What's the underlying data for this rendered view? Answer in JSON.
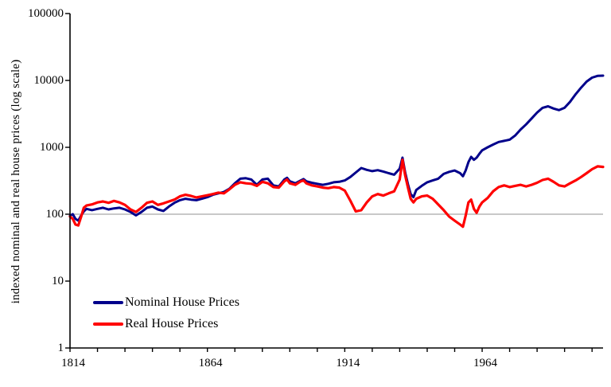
{
  "figure": {
    "y_axis_title": "indexed nominal and real house prices (log scale)",
    "legend": [
      {
        "label": "Nominal House Prices",
        "color": "#00008B"
      },
      {
        "label": "Real House Prices",
        "color": "#FF0000"
      }
    ]
  },
  "chart_data": {
    "type": "line",
    "title": "",
    "xlabel": "",
    "ylabel": "indexed nominal and real house prices (log scale)",
    "y_scale": "log",
    "ylim": [
      1,
      100000
    ],
    "xlim": [
      1814,
      2008
    ],
    "y_ticks": [
      1,
      10,
      100,
      1000,
      10000,
      100000
    ],
    "x_major_ticks": [
      1814,
      1864,
      1914,
      1964
    ],
    "x_minor_tick_step": 10,
    "x_minor_tick_end": 2004,
    "grid": false,
    "legend_position": "bottom-left",
    "reference_line": {
      "value": 100,
      "color": "#A6A6A6"
    },
    "axis_color": "#000000",
    "x": [
      1814,
      1815,
      1816,
      1817,
      1818,
      1819,
      1820,
      1822,
      1824,
      1826,
      1828,
      1830,
      1832,
      1834,
      1836,
      1838,
      1840,
      1842,
      1844,
      1846,
      1848,
      1850,
      1852,
      1854,
      1856,
      1858,
      1860,
      1862,
      1864,
      1866,
      1868,
      1870,
      1872,
      1874,
      1876,
      1878,
      1880,
      1882,
      1884,
      1886,
      1888,
      1890,
      1892,
      1893,
      1894,
      1896,
      1898,
      1899,
      1900,
      1902,
      1904,
      1906,
      1908,
      1910,
      1912,
      1914,
      1916,
      1918,
      1920,
      1922,
      1924,
      1926,
      1928,
      1930,
      1932,
      1934,
      1935,
      1936,
      1937,
      1938,
      1939,
      1940,
      1942,
      1944,
      1946,
      1948,
      1950,
      1952,
      1954,
      1956,
      1957,
      1958,
      1959,
      1960,
      1961,
      1962,
      1963,
      1964,
      1966,
      1968,
      1970,
      1972,
      1974,
      1976,
      1978,
      1980,
      1982,
      1984,
      1986,
      1988,
      1990,
      1992,
      1994,
      1996,
      1998,
      2000,
      2002,
      2004,
      2006,
      2008
    ],
    "series": [
      {
        "name": "Nominal House Prices",
        "color": "#00008B",
        "stroke_width": 3,
        "values": [
          95,
          100,
          85,
          80,
          95,
          110,
          120,
          115,
          120,
          125,
          118,
          122,
          125,
          118,
          108,
          96,
          108,
          125,
          130,
          118,
          112,
          130,
          148,
          162,
          170,
          165,
          162,
          170,
          180,
          195,
          205,
          215,
          240,
          290,
          340,
          345,
          330,
          275,
          330,
          340,
          270,
          260,
          330,
          350,
          310,
          290,
          320,
          335,
          310,
          295,
          285,
          275,
          285,
          300,
          305,
          320,
          360,
          420,
          490,
          460,
          440,
          455,
          435,
          410,
          390,
          480,
          700,
          420,
          280,
          200,
          180,
          230,
          265,
          300,
          320,
          340,
          400,
          430,
          450,
          410,
          370,
          450,
          600,
          720,
          650,
          700,
          800,
          900,
          1000,
          1100,
          1200,
          1250,
          1300,
          1500,
          1850,
          2200,
          2700,
          3300,
          3900,
          4100,
          3800,
          3600,
          3900,
          4800,
          6200,
          7800,
          9600,
          11000,
          11700,
          11800
        ]
      },
      {
        "name": "Real House Prices",
        "color": "#FF0000",
        "stroke_width": 3.2,
        "values": [
          92,
          85,
          70,
          68,
          90,
          125,
          135,
          140,
          150,
          155,
          148,
          158,
          150,
          138,
          118,
          108,
          125,
          148,
          155,
          138,
          145,
          155,
          165,
          185,
          195,
          188,
          178,
          185,
          192,
          200,
          210,
          205,
          235,
          275,
          300,
          290,
          285,
          265,
          305,
          290,
          255,
          250,
          310,
          330,
          290,
          275,
          310,
          320,
          290,
          270,
          260,
          250,
          245,
          255,
          250,
          225,
          160,
          110,
          115,
          150,
          185,
          200,
          190,
          205,
          220,
          330,
          650,
          380,
          250,
          170,
          150,
          170,
          185,
          190,
          170,
          140,
          115,
          92,
          80,
          70,
          65,
          95,
          150,
          165,
          120,
          105,
          130,
          150,
          175,
          220,
          255,
          270,
          255,
          265,
          275,
          260,
          275,
          295,
          325,
          340,
          305,
          270,
          260,
          290,
          320,
          360,
          410,
          470,
          520,
          510
        ]
      }
    ]
  }
}
